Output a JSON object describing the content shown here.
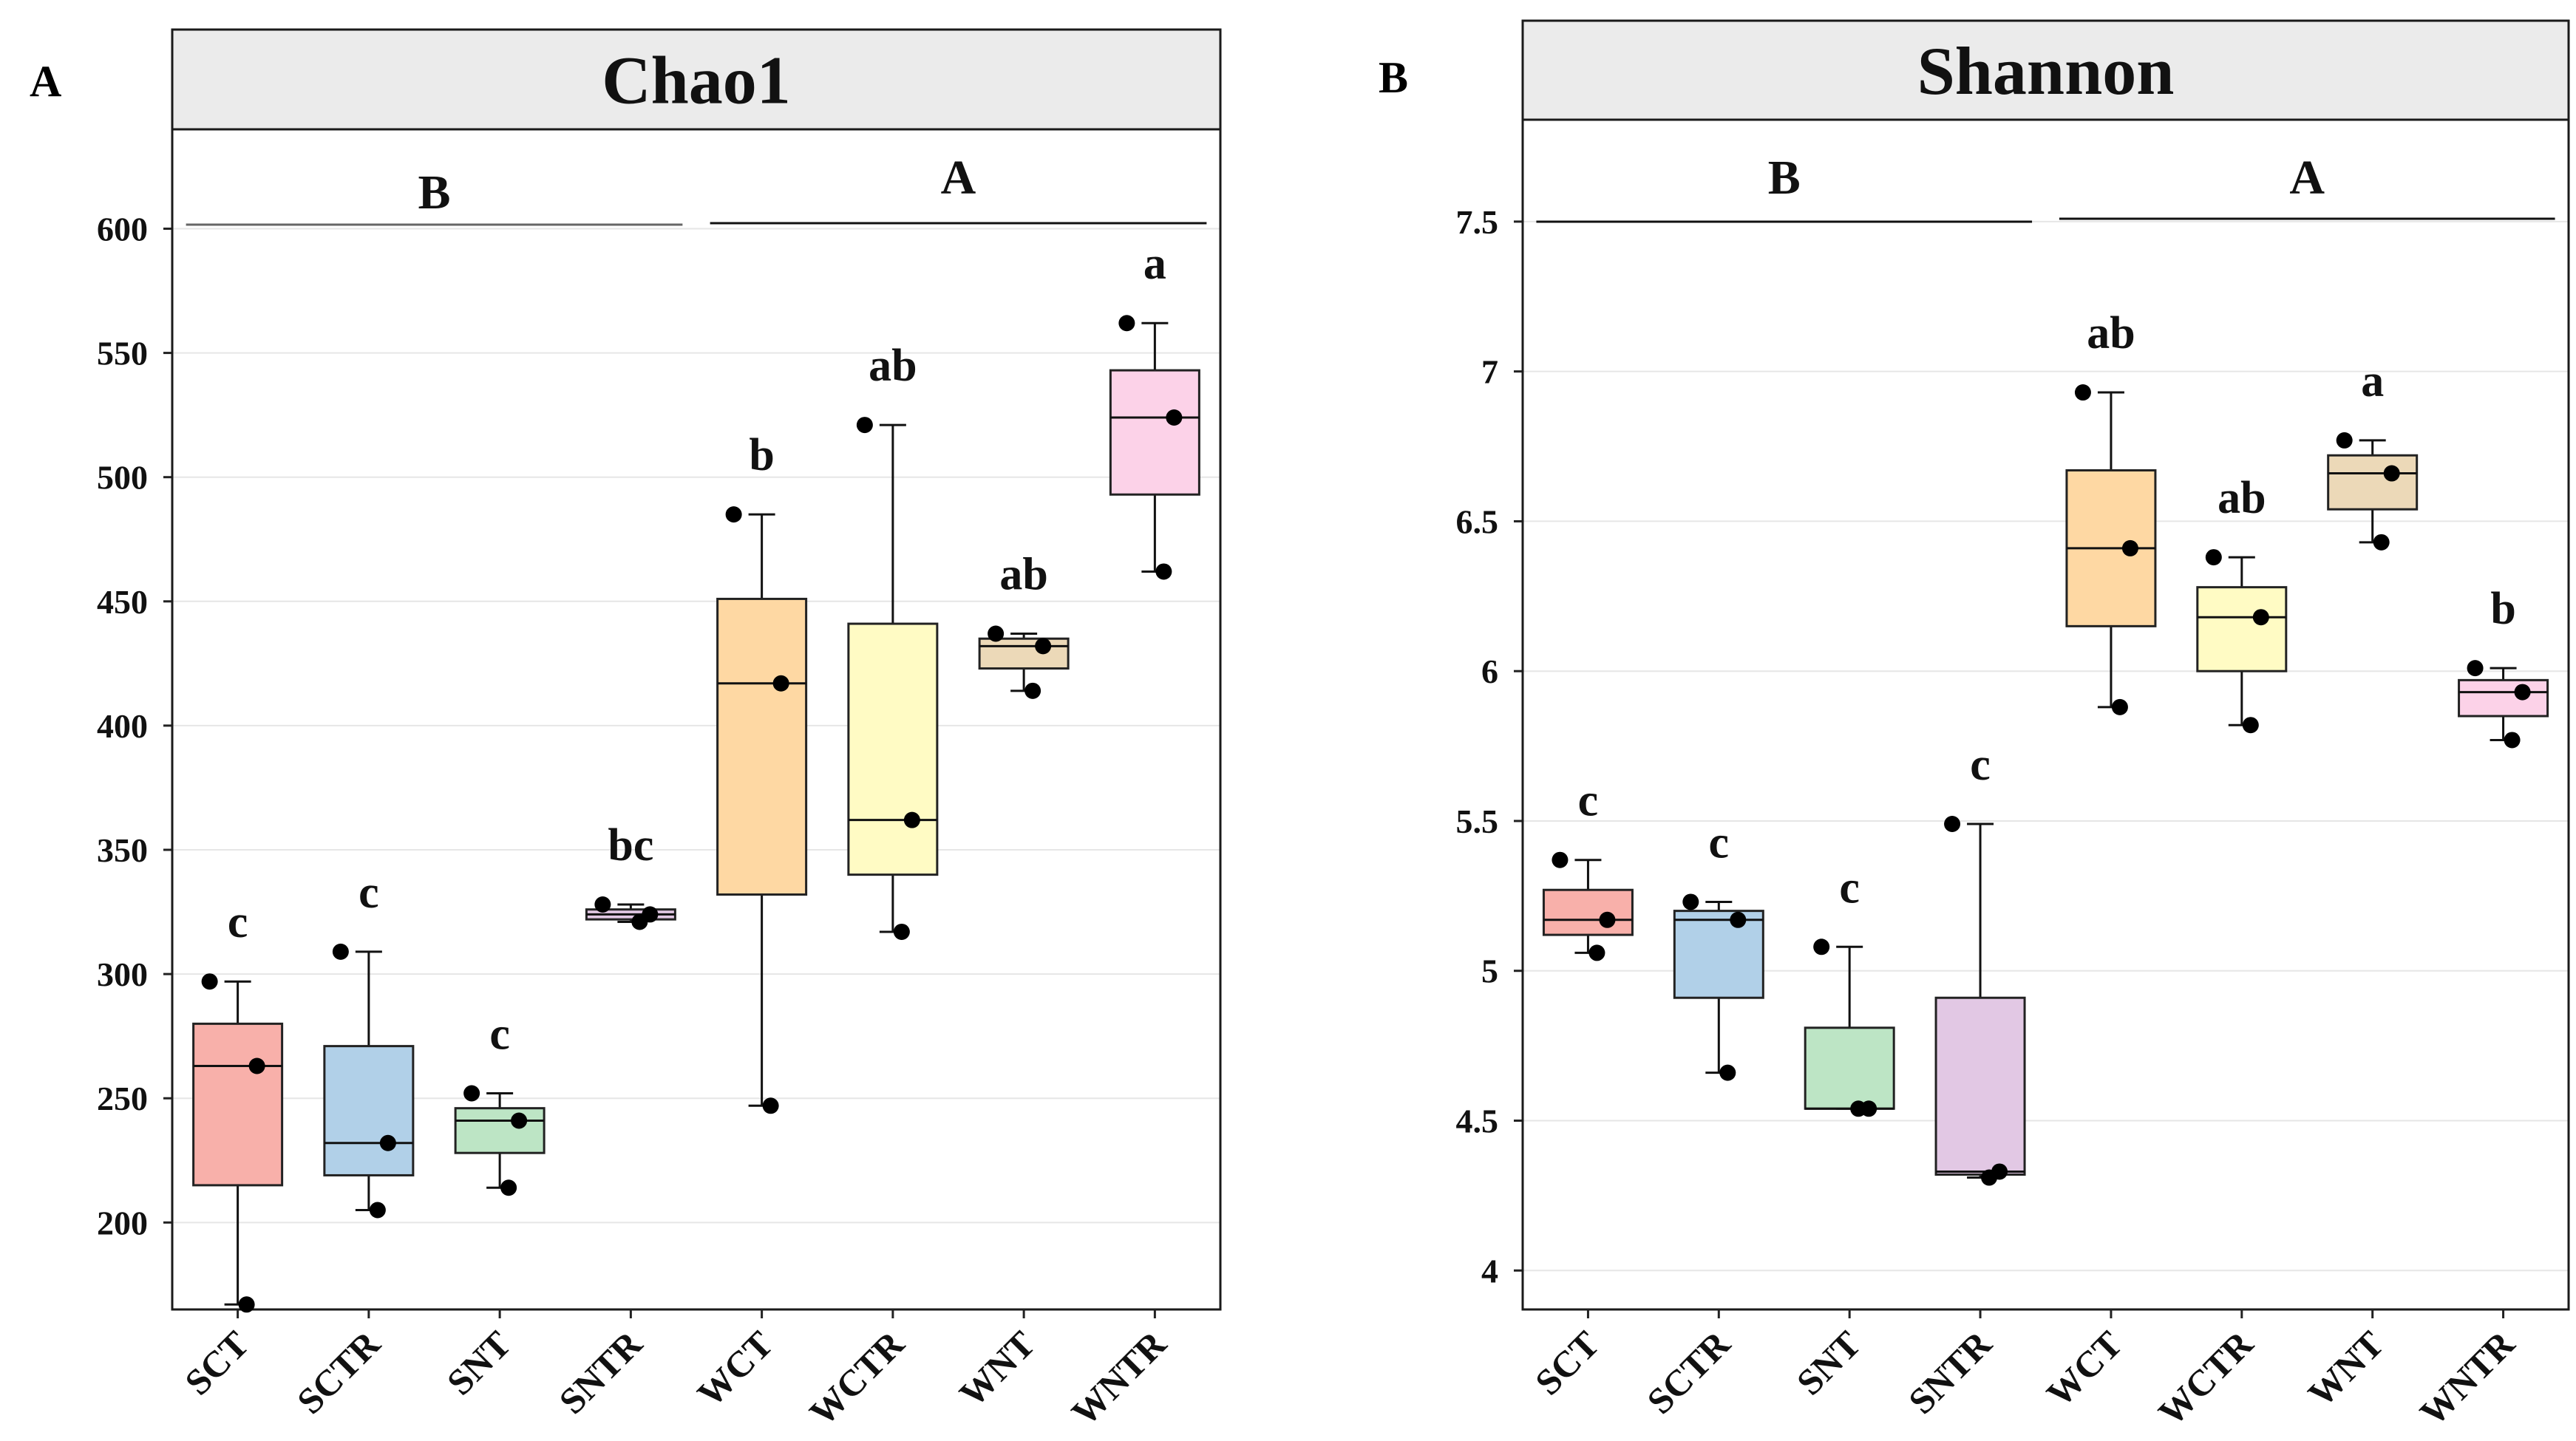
{
  "chart_data": [
    {
      "type": "box",
      "panel_label": "A",
      "title": "Chao1",
      "xlabel": "",
      "ylabel": "",
      "ylim": [
        165,
        640
      ],
      "yticks": [
        200,
        250,
        300,
        350,
        400,
        450,
        500,
        550,
        600
      ],
      "grid": true,
      "categories": [
        "SCT",
        "SCTR",
        "SNT",
        "SNTR",
        "WCT",
        "WCTR",
        "WNT",
        "WNTR"
      ],
      "colors": [
        "#f8b0aa",
        "#b1d0e8",
        "#bde5c5",
        "#e2c8e4",
        "#fed8a3",
        "#fffbc4",
        "#ecd9b8",
        "#fcd2e8"
      ],
      "boxes": [
        {
          "name": "SCT",
          "min": 167,
          "q1": 215,
          "median": 263,
          "q3": 280,
          "max": 297
        },
        {
          "name": "SCTR",
          "min": 205,
          "q1": 219,
          "median": 232,
          "q3": 271,
          "max": 309
        },
        {
          "name": "SNT",
          "min": 214,
          "q1": 228,
          "median": 241,
          "q3": 246,
          "max": 252
        },
        {
          "name": "SNTR",
          "min": 321,
          "q1": 322,
          "median": 324,
          "q3": 326,
          "max": 328
        },
        {
          "name": "WCT",
          "min": 247,
          "q1": 332,
          "median": 417,
          "q3": 451,
          "max": 485
        },
        {
          "name": "WCTR",
          "min": 317,
          "q1": 340,
          "median": 362,
          "q3": 441,
          "max": 521
        },
        {
          "name": "WNT",
          "min": 414,
          "q1": 423,
          "median": 432,
          "q3": 435,
          "max": 437
        },
        {
          "name": "WNTR",
          "min": 462,
          "q1": 493,
          "median": 524,
          "q3": 543,
          "max": 562
        }
      ],
      "points": [
        [
          297,
          263,
          167
        ],
        [
          309,
          232,
          205
        ],
        [
          252,
          241,
          214
        ],
        [
          328,
          324,
          321
        ],
        [
          485,
          417,
          247
        ],
        [
          521,
          362,
          317
        ],
        [
          437,
          432,
          414
        ],
        [
          562,
          524,
          462
        ]
      ],
      "significance": [
        "c",
        "c",
        "c",
        "bc",
        "b",
        "ab",
        "ab",
        "a"
      ],
      "groups": [
        {
          "label": "B",
          "from": 0,
          "to": 3
        },
        {
          "label": "A",
          "from": 4,
          "to": 7
        }
      ]
    },
    {
      "type": "box",
      "panel_label": "B",
      "title": "Shannon",
      "xlabel": "",
      "ylabel": "",
      "ylim": [
        3.87,
        7.84
      ],
      "yticks": [
        4,
        4.5,
        5,
        5.5,
        6,
        6.5,
        7,
        7.5
      ],
      "grid": true,
      "categories": [
        "SCT",
        "SCTR",
        "SNT",
        "SNTR",
        "WCT",
        "WCTR",
        "WNT",
        "WNTR"
      ],
      "colors": [
        "#f8b0aa",
        "#b1d0e8",
        "#bde5c5",
        "#e2c8e4",
        "#fed8a3",
        "#fffbc4",
        "#ecd9b8",
        "#fcd2e8"
      ],
      "boxes": [
        {
          "name": "SCT",
          "min": 5.06,
          "q1": 5.12,
          "median": 5.17,
          "q3": 5.27,
          "max": 5.37
        },
        {
          "name": "SCTR",
          "min": 4.66,
          "q1": 4.91,
          "median": 5.17,
          "q3": 5.2,
          "max": 5.23
        },
        {
          "name": "SNT",
          "min": 4.54,
          "q1": 4.54,
          "median": 4.54,
          "q3": 4.81,
          "max": 5.08
        },
        {
          "name": "SNTR",
          "min": 4.31,
          "q1": 4.32,
          "median": 4.33,
          "q3": 4.91,
          "max": 5.49
        },
        {
          "name": "WCT",
          "min": 5.88,
          "q1": 6.15,
          "median": 6.41,
          "q3": 6.67,
          "max": 6.93
        },
        {
          "name": "WCTR",
          "min": 5.82,
          "q1": 6.0,
          "median": 6.18,
          "q3": 6.28,
          "max": 6.38
        },
        {
          "name": "WNT",
          "min": 6.43,
          "q1": 6.54,
          "median": 6.66,
          "q3": 6.72,
          "max": 6.77
        },
        {
          "name": "WNTR",
          "min": 5.77,
          "q1": 5.85,
          "median": 5.93,
          "q3": 5.97,
          "max": 6.01
        }
      ],
      "points": [
        [
          5.37,
          5.17,
          5.06
        ],
        [
          5.23,
          5.17,
          4.66
        ],
        [
          5.08,
          4.54,
          4.54
        ],
        [
          5.49,
          4.33,
          4.31
        ],
        [
          6.93,
          6.41,
          5.88
        ],
        [
          6.38,
          6.18,
          5.82
        ],
        [
          6.77,
          6.66,
          6.43
        ],
        [
          6.01,
          5.93,
          5.77
        ]
      ],
      "significance": [
        "c",
        "c",
        "c",
        "c",
        "ab",
        "ab",
        "a",
        "b"
      ],
      "groups": [
        {
          "label": "B",
          "from": 0,
          "to": 3
        },
        {
          "label": "A",
          "from": 4,
          "to": 7
        }
      ]
    }
  ]
}
